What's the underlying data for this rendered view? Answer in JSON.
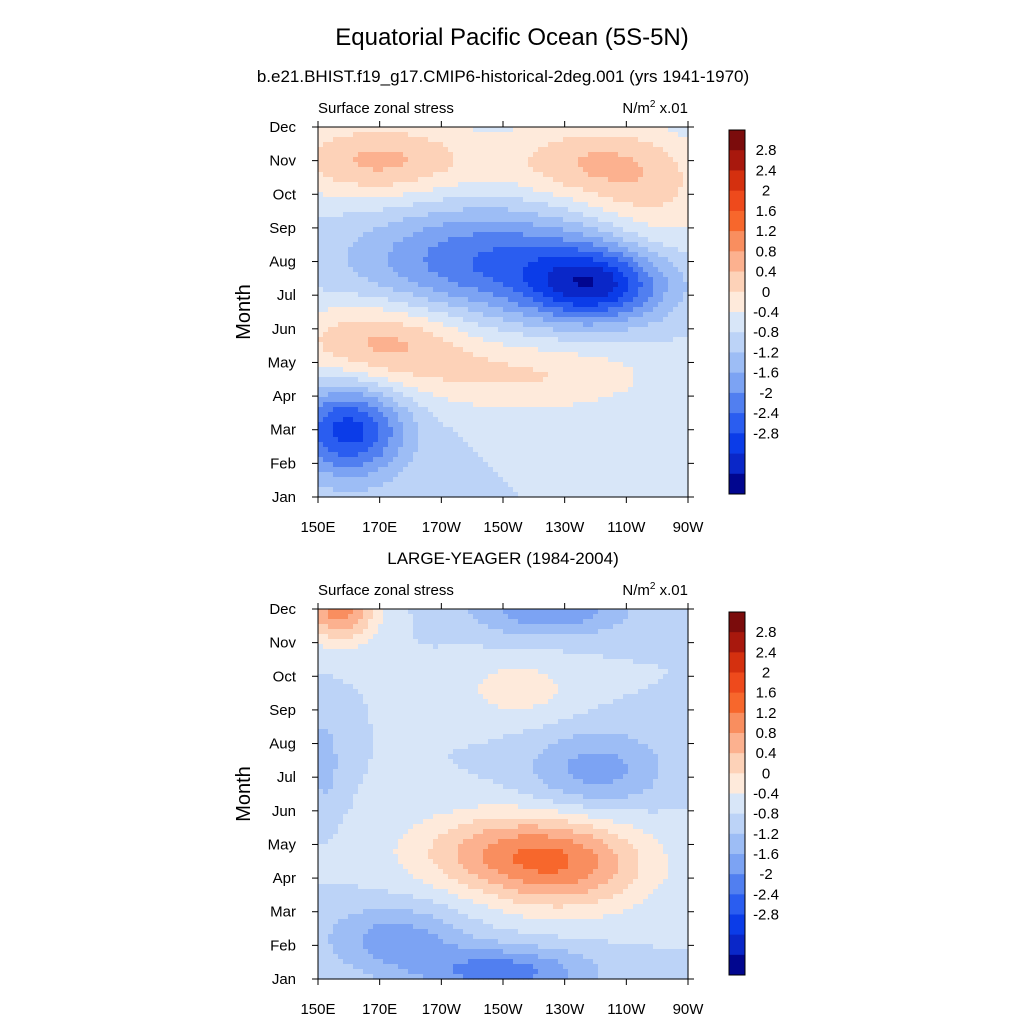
{
  "figure": {
    "title": "Equatorial Pacific Ocean (5S-5N)",
    "subtitle": "b.e21.BHIST.f19_g17.CMIP6-historical-2deg.001 (yrs 1941-1970)"
  },
  "chart_data": [
    {
      "type": "heatmap",
      "panel_title": "",
      "left_label": "Surface zonal stress",
      "unit_main": "N/m",
      "unit_sup": "2",
      "unit_tail": " x.01",
      "ylabel": "Month",
      "x_ticks": [
        "150E",
        "170E",
        "170W",
        "150W",
        "130W",
        "110W",
        "90W"
      ],
      "y_ticks": [
        "Jan",
        "Feb",
        "Mar",
        "Apr",
        "May",
        "Jun",
        "Jul",
        "Aug",
        "Sep",
        "Oct",
        "Nov",
        "Dec"
      ],
      "xlim": [
        "150E",
        "90W"
      ],
      "ylim": [
        "Jan",
        "Dec"
      ],
      "features": [
        {
          "lon": 160,
          "month": 3.0,
          "value": -2.2,
          "wlon": 18,
          "wmon": 1.4
        },
        {
          "lon": 205,
          "month": 8.0,
          "value": -1.6,
          "wlon": 40,
          "wmon": 1.6
        },
        {
          "lon": 240,
          "month": 7.3,
          "value": -2.2,
          "wlon": 22,
          "wmon": 1.1
        },
        {
          "lon": 170,
          "month": 5.6,
          "value": 1.3,
          "wlon": 30,
          "wmon": 1.3
        },
        {
          "lon": 220,
          "month": 4.6,
          "value": 0.8,
          "wlon": 40,
          "wmon": 1.1
        },
        {
          "lon": 170,
          "month": 11.0,
          "value": 1.3,
          "wlon": 32,
          "wmon": 1.2
        },
        {
          "lon": 240,
          "month": 10.9,
          "value": 1.2,
          "wlon": 30,
          "wmon": 1.3
        },
        {
          "lon": 260,
          "month": 9.5,
          "value": 0.6,
          "wlon": 20,
          "wmon": 1.6
        }
      ]
    },
    {
      "type": "heatmap",
      "panel_title": "LARGE-YEAGER (1984-2004)",
      "left_label": "Surface zonal stress",
      "unit_main": "N/m",
      "unit_sup": "2",
      "unit_tail": " x.01",
      "ylabel": "Month",
      "x_ticks": [
        "150E",
        "170E",
        "170W",
        "150W",
        "130W",
        "110W",
        "90W"
      ],
      "y_ticks": [
        "Jan",
        "Feb",
        "Mar",
        "Apr",
        "May",
        "Jun",
        "Jul",
        "Aug",
        "Sep",
        "Oct",
        "Nov",
        "Dec"
      ],
      "xlim": [
        "150E",
        "90W"
      ],
      "ylim": [
        "Jan",
        "Dec"
      ],
      "features": [
        {
          "lon": 157,
          "month": 12.0,
          "value": 1.8,
          "wlon": 12,
          "wmon": 1.0
        },
        {
          "lon": 230,
          "month": 4.4,
          "value": 1.6,
          "wlon": 28,
          "wmon": 1.4
        },
        {
          "lon": 205,
          "month": 4.8,
          "value": 1.0,
          "wlon": 30,
          "wmon": 1.2
        },
        {
          "lon": 215,
          "month": 9.6,
          "value": 0.6,
          "wlon": 20,
          "wmon": 1.0
        },
        {
          "lon": 175,
          "month": 2.2,
          "value": -1.0,
          "wlon": 22,
          "wmon": 1.0
        },
        {
          "lon": 210,
          "month": 1.2,
          "value": -1.4,
          "wlon": 28,
          "wmon": 0.8
        },
        {
          "lon": 240,
          "month": 7.2,
          "value": -1.0,
          "wlon": 22,
          "wmon": 1.2
        },
        {
          "lon": 225,
          "month": 12.0,
          "value": -1.2,
          "wlon": 25,
          "wmon": 0.8
        },
        {
          "lon": 152,
          "month": 7.5,
          "value": -0.6,
          "wlon": 6,
          "wmon": 1.5
        }
      ]
    }
  ],
  "colorbar": {
    "labels": [
      "2.8",
      "2.4",
      "2",
      "1.6",
      "1.2",
      "0.8",
      "0.4",
      "0",
      "-0.4",
      "-0.8",
      "-1.2",
      "-1.6",
      "-2",
      "-2.4",
      "-2.8"
    ],
    "levels": [
      -2.8,
      -2.4,
      -2.0,
      -1.6,
      -1.2,
      -0.8,
      -0.4,
      0,
      0.4,
      0.8,
      1.2,
      1.6,
      2.0,
      2.4,
      2.8
    ],
    "colors": [
      "#7b0c0c",
      "#a8180d",
      "#d4300f",
      "#ee4a1c",
      "#f7672c",
      "#f98e5f",
      "#fcb18f",
      "#fdd2b8",
      "#feeadb",
      "#d8e6f8",
      "#bcd3f7",
      "#9dbdf5",
      "#7ca3f3",
      "#517ff0",
      "#2a5df0",
      "#0b3ce8",
      "#0a27c8",
      "#01068f"
    ]
  }
}
